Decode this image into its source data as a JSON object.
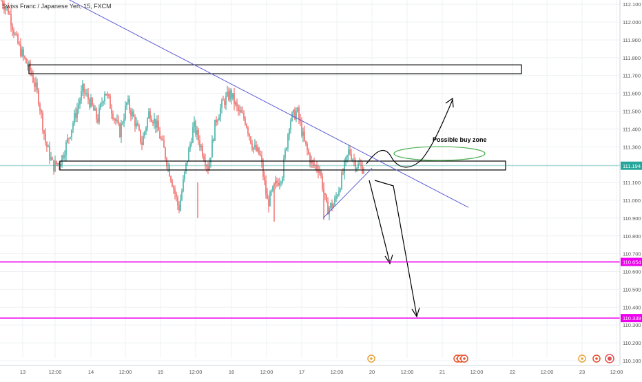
{
  "header": {
    "symbol": "Swiss Franc / Japanese Yen, 15, FXCM"
  },
  "price_axis": {
    "ticks": [
      "112.100",
      "112.000",
      "111.900",
      "111.800",
      "111.700",
      "111.600",
      "111.500",
      "111.400",
      "111.300",
      "111.200",
      "111.100",
      "111.000",
      "110.900",
      "110.800",
      "110.700",
      "110.600",
      "110.500",
      "110.400",
      "110.300",
      "110.200",
      "110.100"
    ],
    "current_price": "111.194",
    "support_1": "110.654",
    "support_2": "110.339"
  },
  "time_axis": {
    "ticks": [
      "13",
      "12:00",
      "14",
      "12:00",
      "15",
      "12:00",
      "16",
      "12:00",
      "17",
      "12:00",
      "20",
      "12:00",
      "21",
      "12:00",
      "22",
      "12:00",
      "23",
      "12:00"
    ]
  },
  "annotations": {
    "buy_zone_label": "Possible buy zone"
  },
  "colors": {
    "up": "#26a69a",
    "down": "#ef5350",
    "trendline": "#5b5bd6",
    "support_line": "#ee00ee",
    "price_line": "#26a69a",
    "buy_zone": "#4caf50"
  },
  "chart_data": {
    "type": "candlestick",
    "title": "Swiss Franc / Japanese Yen, 15, FXCM",
    "ylim": [
      110.06,
      112.13
    ],
    "x_tick_labels": [
      "13",
      "12:00",
      "14",
      "12:00",
      "15",
      "12:00",
      "16",
      "12:00",
      "17",
      "12:00",
      "20",
      "12:00",
      "21",
      "12:00",
      "22",
      "12:00",
      "23",
      "12:00"
    ],
    "price_path": [
      [
        0,
        112.12
      ],
      [
        1,
        112.06
      ],
      [
        2,
        111.9
      ],
      [
        3,
        111.8
      ],
      [
        4,
        111.72
      ],
      [
        5,
        111.58
      ],
      [
        6,
        111.32
      ],
      [
        7,
        111.19
      ],
      [
        8,
        111.22
      ],
      [
        9,
        111.34
      ],
      [
        10,
        111.48
      ],
      [
        11,
        111.62
      ],
      [
        12,
        111.55
      ],
      [
        13,
        111.45
      ],
      [
        14,
        111.62
      ],
      [
        15,
        111.5
      ],
      [
        16,
        111.38
      ],
      [
        17,
        111.55
      ],
      [
        18,
        111.45
      ],
      [
        19,
        111.32
      ],
      [
        20,
        111.5
      ],
      [
        21,
        111.42
      ],
      [
        22,
        111.28
      ],
      [
        23,
        111.12
      ],
      [
        24,
        110.95
      ],
      [
        25,
        111.2
      ],
      [
        26,
        111.42
      ],
      [
        27,
        111.3
      ],
      [
        28,
        111.18
      ],
      [
        29,
        111.45
      ],
      [
        30,
        111.55
      ],
      [
        31,
        111.6
      ],
      [
        32,
        111.5
      ],
      [
        33,
        111.45
      ],
      [
        34,
        111.3
      ],
      [
        35,
        111.25
      ],
      [
        36,
        110.98
      ],
      [
        37,
        111.08
      ],
      [
        38,
        111.15
      ],
      [
        39,
        111.45
      ],
      [
        40,
        111.5
      ],
      [
        41,
        111.32
      ],
      [
        42,
        111.2
      ],
      [
        43,
        111.18
      ],
      [
        44,
        110.95
      ],
      [
        45,
        110.98
      ],
      [
        46,
        111.12
      ],
      [
        47,
        111.28
      ],
      [
        48,
        111.2
      ],
      [
        49,
        111.18
      ]
    ],
    "current_price": 111.194,
    "resistance_zone": [
      111.71,
      111.76
    ],
    "support_zone": [
      111.17,
      111.22
    ],
    "horizontal_levels": [
      110.654,
      110.339
    ],
    "descending_trendline": {
      "from": {
        "x": "13",
        "price": 112.14
      },
      "to": {
        "x": "21",
        "price": 110.96
      }
    },
    "ascending_trendline": {
      "from": {
        "x": "17 12:00",
        "price": 110.9
      },
      "to": {
        "x": "20",
        "price": 111.18
      }
    },
    "buy_zone": {
      "label": "Possible buy zone",
      "price": 111.27
    },
    "grid": true
  }
}
